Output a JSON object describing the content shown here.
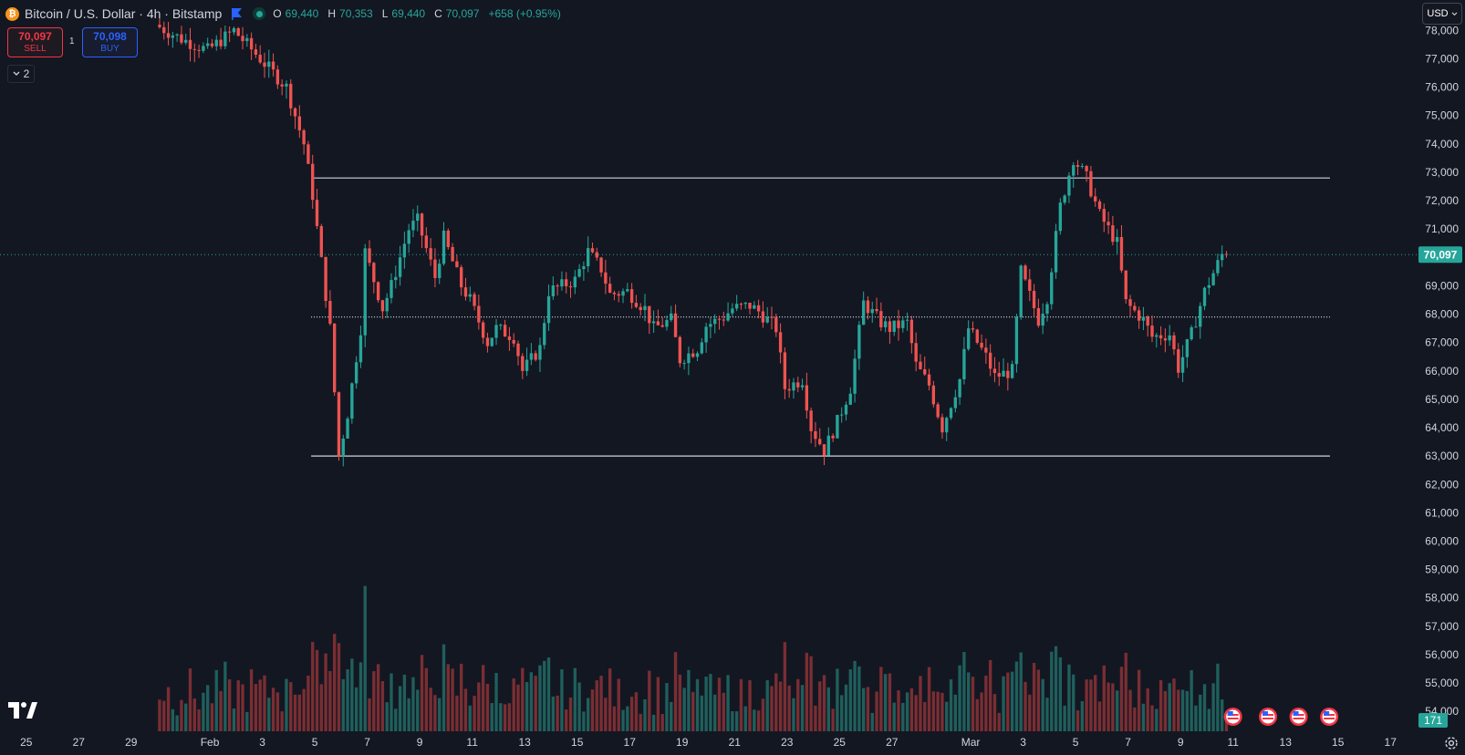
{
  "header": {
    "coin_glyph": "₿",
    "symbol_title": "Bitcoin / U.S. Dollar · 4h · Bitstamp",
    "ohlc": [
      {
        "label": "O",
        "value": "69,440"
      },
      {
        "label": "H",
        "value": "70,353"
      },
      {
        "label": "L",
        "value": "69,440"
      },
      {
        "label": "C",
        "value": "70,097"
      },
      {
        "label": "",
        "value": "+658 (+0.95%)"
      }
    ]
  },
  "trade": {
    "sell_price": "70,097",
    "sell_label": "SELL",
    "buy_price": "70,098",
    "buy_label": "BUY",
    "spread": "1"
  },
  "indicators_toggle": "2",
  "currency": "USD",
  "colors": {
    "background": "#131722",
    "up": "#26a69a",
    "down": "#ef5350",
    "vol_up": "#1f5f5c",
    "vol_down": "#7a2e33",
    "grid_text": "#d1d4dc",
    "line": "#cfd3dc"
  },
  "chart_data": {
    "type": "candlestick",
    "title": "Bitcoin / U.S. Dollar · 4h · Bitstamp",
    "xlabel": "",
    "ylabel": "",
    "ylim": [
      53300,
      78750
    ],
    "x_ticks": [
      "25",
      "27",
      "29",
      "Feb",
      "3",
      "5",
      "7",
      "9",
      "11",
      "13",
      "15",
      "17",
      "19",
      "21",
      "23",
      "25",
      "27",
      "Mar",
      "3",
      "5",
      "7",
      "9",
      "11",
      "13",
      "15",
      "17"
    ],
    "y_ticks": [
      "78,000",
      "77,000",
      "76,000",
      "75,000",
      "74,000",
      "73,000",
      "72,000",
      "71,000",
      "70,000",
      "69,000",
      "68,000",
      "67,000",
      "66,000",
      "65,000",
      "64,000",
      "63,000",
      "62,000",
      "61,000",
      "60,000",
      "59,000",
      "58,000",
      "57,000",
      "56,000",
      "55,000",
      "54,000"
    ],
    "last_price_label": "70,097",
    "last_price": 70097,
    "volume_label": "171",
    "x_start_date": "2024-01-24",
    "x_end_date": "2024-03-18",
    "data_start_date": "2024-01-30",
    "data_end_date": "2024-03-10",
    "last_candle_time": "2024-03-10T16:00",
    "bars_per_day": 6,
    "horizontal_levels": [
      {
        "price": 72800,
        "style": "solid",
        "from": "2024-02-05",
        "to": "2024-03-14"
      },
      {
        "price": 67900,
        "style": "dotted",
        "from": "2024-02-05",
        "to": "2024-03-14"
      },
      {
        "price": 63000,
        "style": "solid",
        "from": "2024-02-05",
        "to": "2024-03-14"
      }
    ],
    "price_path": [
      {
        "date": "2024-01-30",
        "price": 78200
      },
      {
        "date": "2024-01-31",
        "price": 77700
      },
      {
        "date": "2024-02-01",
        "price": 77300
      },
      {
        "date": "2024-02-02",
        "price": 78000
      },
      {
        "date": "2024-02-03",
        "price": 77000
      },
      {
        "date": "2024-02-04",
        "price": 76000
      },
      {
        "date": "2024-02-04T16:00",
        "price": 74000
      },
      {
        "date": "2024-02-05",
        "price": 72200
      },
      {
        "date": "2024-02-05T16:00",
        "price": 67500
      },
      {
        "date": "2024-02-06",
        "price": 63000
      },
      {
        "date": "2024-02-06T08:00",
        "price": 64500
      },
      {
        "date": "2024-02-06T20:00",
        "price": 67500
      },
      {
        "date": "2024-02-07",
        "price": 70200
      },
      {
        "date": "2024-02-07T16:00",
        "price": 68200
      },
      {
        "date": "2024-02-08",
        "price": 69000
      },
      {
        "date": "2024-02-08T16:00",
        "price": 71000
      },
      {
        "date": "2024-02-09",
        "price": 71300
      },
      {
        "date": "2024-02-09T16:00",
        "price": 69300
      },
      {
        "date": "2024-02-10",
        "price": 70700
      },
      {
        "date": "2024-02-10T16:00",
        "price": 69000
      },
      {
        "date": "2024-02-11",
        "price": 68500
      },
      {
        "date": "2024-02-11T16:00",
        "price": 67000
      },
      {
        "date": "2024-02-12",
        "price": 67500
      },
      {
        "date": "2024-02-12T16:00",
        "price": 67200
      },
      {
        "date": "2024-02-13",
        "price": 66000
      },
      {
        "date": "2024-02-13T16:00",
        "price": 66800
      },
      {
        "date": "2024-02-14",
        "price": 68800
      },
      {
        "date": "2024-02-15",
        "price": 69200
      },
      {
        "date": "2024-02-15T12:00",
        "price": 70200
      },
      {
        "date": "2024-02-16",
        "price": 69600
      },
      {
        "date": "2024-02-16T08:00",
        "price": 68700
      },
      {
        "date": "2024-02-17",
        "price": 68800
      },
      {
        "date": "2024-02-17T16:00",
        "price": 68200
      },
      {
        "date": "2024-02-18",
        "price": 67500
      },
      {
        "date": "2024-02-18T16:00",
        "price": 67800
      },
      {
        "date": "2024-02-19",
        "price": 66400
      },
      {
        "date": "2024-02-19T16:00",
        "price": 66800
      },
      {
        "date": "2024-02-20",
        "price": 67600
      },
      {
        "date": "2024-02-20T16:00",
        "price": 67900
      },
      {
        "date": "2024-02-21",
        "price": 68200
      },
      {
        "date": "2024-02-21T16:00",
        "price": 68300
      },
      {
        "date": "2024-02-22",
        "price": 68100
      },
      {
        "date": "2024-02-22T16:00",
        "price": 67500
      },
      {
        "date": "2024-02-23",
        "price": 65400
      },
      {
        "date": "2024-02-23T16:00",
        "price": 65700
      },
      {
        "date": "2024-02-24",
        "price": 64000
      },
      {
        "date": "2024-02-24T12:00",
        "price": 63200
      },
      {
        "date": "2024-02-25",
        "price": 64200
      },
      {
        "date": "2024-02-25T12:00",
        "price": 65400
      },
      {
        "date": "2024-02-26",
        "price": 68400
      },
      {
        "date": "2024-02-26T16:00",
        "price": 67700
      },
      {
        "date": "2024-02-27",
        "price": 67500
      },
      {
        "date": "2024-02-27T16:00",
        "price": 67700
      },
      {
        "date": "2024-02-28",
        "price": 66200
      },
      {
        "date": "2024-02-28T12:00",
        "price": 65500
      },
      {
        "date": "2024-02-29",
        "price": 64000
      },
      {
        "date": "2024-02-29T16:00",
        "price": 65700
      },
      {
        "date": "2024-03-01",
        "price": 67500
      },
      {
        "date": "2024-03-01T16:00",
        "price": 66500
      },
      {
        "date": "2024-03-02",
        "price": 65800
      },
      {
        "date": "2024-03-02T16:00",
        "price": 66000
      },
      {
        "date": "2024-03-03",
        "price": 69500
      },
      {
        "date": "2024-03-03T16:00",
        "price": 67800
      },
      {
        "date": "2024-03-04",
        "price": 68600
      },
      {
        "date": "2024-03-04T12:00",
        "price": 71800
      },
      {
        "date": "2024-03-05",
        "price": 73500
      },
      {
        "date": "2024-03-05T12:00",
        "price": 72800
      },
      {
        "date": "2024-03-06",
        "price": 71500
      },
      {
        "date": "2024-03-06T16:00",
        "price": 70500
      },
      {
        "date": "2024-03-07",
        "price": 68400
      },
      {
        "date": "2024-03-07T16:00",
        "price": 67800
      },
      {
        "date": "2024-03-08",
        "price": 67200
      },
      {
        "date": "2024-03-08T16:00",
        "price": 67300
      },
      {
        "date": "2024-03-09",
        "price": 66100
      },
      {
        "date": "2024-03-09T12:00",
        "price": 67300
      },
      {
        "date": "2024-03-10",
        "price": 68800
      },
      {
        "date": "2024-03-10T16:00",
        "price": 70097
      }
    ]
  }
}
